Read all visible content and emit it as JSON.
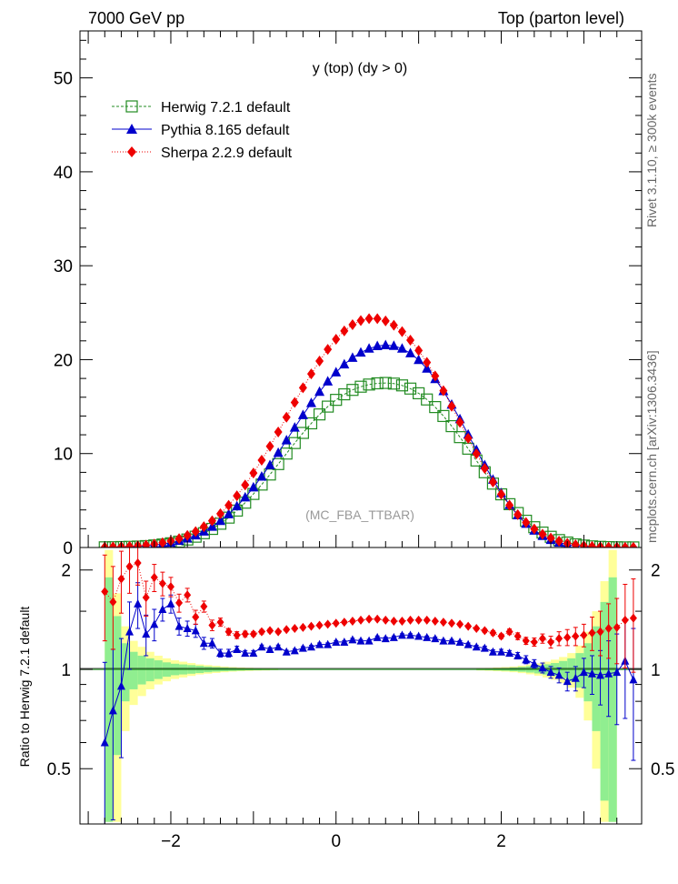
{
  "header": {
    "left": "7000 GeV pp",
    "right": "Top (parton level)"
  },
  "side_labels": {
    "rivet": "Rivet 3.1.10, ≥ 300k events",
    "mcplots": "mcplots.cern.ch [arXiv:1306.3436]"
  },
  "watermark": "(MC_FBA_TTBAR)",
  "colors": {
    "herwig": "#228B22",
    "pythia": "#0000CC",
    "sherpa": "#EE0000",
    "band_inner": "#90EE90",
    "band_outer": "#FFFF99"
  },
  "chart_data": [
    {
      "type": "line",
      "title": "y (top) (dy > 0)",
      "xlabel": "",
      "ylabel": "",
      "xlim": [
        -3.1,
        3.7
      ],
      "ylim": [
        0,
        55
      ],
      "yticks": [
        0,
        10,
        20,
        30,
        40,
        50
      ],
      "legend_position": "top-left",
      "x": [
        -2.8,
        -2.7,
        -2.6,
        -2.5,
        -2.4,
        -2.3,
        -2.2,
        -2.1,
        -2.0,
        -1.9,
        -1.8,
        -1.7,
        -1.6,
        -1.5,
        -1.4,
        -1.3,
        -1.2,
        -1.1,
        -1.0,
        -0.9,
        -0.8,
        -0.7,
        -0.6,
        -0.5,
        -0.4,
        -0.3,
        -0.2,
        -0.1,
        0.0,
        0.1,
        0.2,
        0.3,
        0.4,
        0.5,
        0.6,
        0.7,
        0.8,
        0.9,
        1.0,
        1.1,
        1.2,
        1.3,
        1.4,
        1.5,
        1.6,
        1.7,
        1.8,
        1.9,
        2.0,
        2.1,
        2.2,
        2.3,
        2.4,
        2.5,
        2.6,
        2.7,
        2.8,
        2.9,
        3.0,
        3.1,
        3.2,
        3.3,
        3.4,
        3.5,
        3.6
      ],
      "series": [
        {
          "name": "Herwig 7.2.1 default",
          "marker": "open-square",
          "values": [
            0.02,
            0.03,
            0.05,
            0.07,
            0.1,
            0.15,
            0.22,
            0.32,
            0.45,
            0.62,
            0.85,
            1.15,
            1.52,
            1.98,
            2.53,
            3.18,
            3.93,
            4.77,
            5.7,
            6.7,
            7.77,
            8.88,
            10.0,
            11.12,
            12.2,
            13.22,
            14.17,
            15.0,
            15.72,
            16.31,
            16.78,
            17.12,
            17.35,
            17.48,
            17.52,
            17.45,
            17.26,
            16.92,
            16.42,
            15.76,
            14.95,
            14.0,
            12.92,
            11.75,
            10.52,
            9.26,
            8.01,
            6.8,
            5.66,
            4.61,
            3.67,
            2.85,
            2.16,
            1.59,
            1.14,
            0.79,
            0.53,
            0.34,
            0.21,
            0.12,
            0.07,
            0.04,
            0.02,
            0.01,
            0.01
          ]
        },
        {
          "name": "Pythia 8.165 default",
          "marker": "filled-triangle",
          "values": [
            0.03,
            0.04,
            0.06,
            0.08,
            0.12,
            0.18,
            0.26,
            0.37,
            0.51,
            0.71,
            0.97,
            1.3,
            1.71,
            2.22,
            2.83,
            3.55,
            4.39,
            5.34,
            6.4,
            7.55,
            8.78,
            10.08,
            11.42,
            12.77,
            14.1,
            15.38,
            16.58,
            17.68,
            18.65,
            19.5,
            20.2,
            20.76,
            21.18,
            21.45,
            21.55,
            21.47,
            21.18,
            20.68,
            19.97,
            19.05,
            17.94,
            16.66,
            15.22,
            13.66,
            12.03,
            10.38,
            8.76,
            7.22,
            5.8,
            4.53,
            3.44,
            2.53,
            1.8,
            1.23,
            0.81,
            0.52,
            0.32,
            0.19,
            0.11,
            0.06,
            0.04,
            0.02,
            0.01,
            0.01,
            0.0
          ]
        },
        {
          "name": "Sherpa 2.2.9 default",
          "marker": "filled-diamond",
          "values": [
            0.04,
            0.06,
            0.09,
            0.12,
            0.18,
            0.25,
            0.36,
            0.51,
            0.7,
            0.95,
            1.28,
            1.7,
            2.22,
            2.85,
            3.6,
            4.49,
            5.51,
            6.66,
            7.93,
            9.3,
            10.77,
            12.3,
            13.87,
            15.45,
            17.0,
            18.48,
            19.85,
            21.1,
            22.18,
            23.06,
            23.72,
            24.16,
            24.37,
            24.36,
            24.12,
            23.66,
            22.98,
            22.08,
            20.98,
            19.7,
            18.26,
            16.69,
            15.03,
            13.33,
            11.63,
            9.98,
            8.42,
            6.97,
            5.66,
            4.5,
            3.5,
            2.66,
            1.97,
            1.42,
            1.0,
            0.68,
            0.45,
            0.29,
            0.18,
            0.11,
            0.07,
            0.04,
            0.02,
            0.01,
            0.01
          ]
        }
      ]
    },
    {
      "type": "line",
      "title": "",
      "xlabel": "",
      "ylabel": "Ratio to Herwig 7.2.1 default",
      "xlim": [
        -3.1,
        3.7
      ],
      "ylim": [
        0.34,
        2.34
      ],
      "yticks": [
        0.5,
        1,
        2
      ],
      "xticks": [
        -2,
        0,
        2
      ],
      "ref_line": 1,
      "band": {
        "x_edges": [
          -2.75,
          -2.65,
          -2.55,
          -2.45,
          -2.35,
          -2.25,
          -2.15,
          -2.05,
          -1.95,
          -1.85,
          -1.75,
          -1.65,
          -1.55,
          -1.45,
          -1.35,
          -1.25,
          -1.15,
          -1.05,
          -0.95,
          -0.85,
          -0.75,
          1.75,
          1.85,
          1.95,
          2.05,
          2.15,
          2.25,
          2.35,
          2.45,
          2.55,
          2.65,
          2.75,
          2.85,
          2.95,
          3.05,
          3.15,
          3.25,
          3.35,
          3.45
        ],
        "inner_half": [
          0.9,
          0.45,
          0.2,
          0.13,
          0.1,
          0.08,
          0.065,
          0.05,
          0.04,
          0.035,
          0.03,
          0.025,
          0.02,
          0.016,
          0.013,
          0.011,
          0.009,
          0.007,
          0.006,
          0.005,
          0.004,
          0.005,
          0.006,
          0.008,
          0.01,
          0.013,
          0.017,
          0.022,
          0.028,
          0.036,
          0.045,
          0.06,
          0.08,
          0.12,
          0.2,
          0.35,
          0.6,
          0.9
        ],
        "outer_half": [
          1.3,
          0.7,
          0.35,
          0.22,
          0.17,
          0.13,
          0.1,
          0.08,
          0.065,
          0.055,
          0.045,
          0.035,
          0.03,
          0.025,
          0.02,
          0.016,
          0.013,
          0.011,
          0.009,
          0.008,
          0.006,
          0.008,
          0.01,
          0.013,
          0.016,
          0.02,
          0.026,
          0.034,
          0.043,
          0.055,
          0.07,
          0.09,
          0.12,
          0.18,
          0.3,
          0.5,
          0.85,
          1.3
        ]
      },
      "series": [
        {
          "name": "Pythia 8.165 default",
          "values": [
            0.6,
            0.75,
            0.89,
            1.3,
            1.58,
            1.28,
            1.37,
            1.52,
            1.58,
            1.35,
            1.33,
            1.31,
            1.2,
            1.2,
            1.12,
            1.12,
            1.15,
            1.12,
            1.12,
            1.17,
            1.15,
            1.17,
            1.13,
            1.14,
            1.16,
            1.17,
            1.19,
            1.19,
            1.21,
            1.21,
            1.23,
            1.22,
            1.22,
            1.25,
            1.24,
            1.25,
            1.27,
            1.27,
            1.26,
            1.25,
            1.24,
            1.22,
            1.22,
            1.21,
            1.19,
            1.17,
            1.16,
            1.13,
            1.13,
            1.12,
            1.1,
            1.07,
            1.04,
            1.01,
            0.98,
            0.96,
            0.92,
            0.94,
            0.98,
            0.97,
            0.96,
            0.97,
            0.98,
            1.06,
            0.93
          ],
          "err": [
            0.45,
            0.4,
            0.35,
            0.3,
            0.25,
            0.18,
            0.15,
            0.12,
            0.1,
            0.08,
            0.07,
            0.06,
            0.05,
            0.04,
            0.03,
            0.03,
            0.025,
            0.02,
            0.02,
            0.015,
            0.015,
            0.015,
            0.012,
            0.012,
            0.012,
            0.012,
            0.012,
            0.012,
            0.012,
            0.012,
            0.012,
            0.012,
            0.012,
            0.012,
            0.012,
            0.012,
            0.012,
            0.012,
            0.012,
            0.012,
            0.012,
            0.012,
            0.012,
            0.012,
            0.012,
            0.012,
            0.015,
            0.015,
            0.02,
            0.02,
            0.025,
            0.03,
            0.03,
            0.035,
            0.04,
            0.05,
            0.06,
            0.08,
            0.1,
            0.13,
            0.18,
            0.25,
            0.3,
            0.35,
            0.4
          ]
        },
        {
          "name": "Sherpa 2.2.9 default",
          "values": [
            1.72,
            1.6,
            1.88,
            2.05,
            2.1,
            1.65,
            1.9,
            1.82,
            1.78,
            1.59,
            1.68,
            1.44,
            1.55,
            1.36,
            1.39,
            1.3,
            1.27,
            1.28,
            1.28,
            1.3,
            1.31,
            1.3,
            1.32,
            1.33,
            1.34,
            1.35,
            1.36,
            1.37,
            1.38,
            1.39,
            1.4,
            1.41,
            1.42,
            1.42,
            1.41,
            1.4,
            1.4,
            1.41,
            1.41,
            1.41,
            1.4,
            1.39,
            1.38,
            1.37,
            1.35,
            1.33,
            1.31,
            1.29,
            1.26,
            1.3,
            1.26,
            1.22,
            1.21,
            1.24,
            1.21,
            1.24,
            1.25,
            1.26,
            1.27,
            1.29,
            1.3,
            1.33,
            1.34,
            1.41,
            1.43
          ],
          "err": [
            0.5,
            0.45,
            0.4,
            0.35,
            0.3,
            0.2,
            0.18,
            0.15,
            0.12,
            0.1,
            0.08,
            0.07,
            0.06,
            0.05,
            0.04,
            0.03,
            0.03,
            0.025,
            0.02,
            0.02,
            0.018,
            0.015,
            0.015,
            0.015,
            0.015,
            0.015,
            0.015,
            0.015,
            0.015,
            0.015,
            0.015,
            0.015,
            0.015,
            0.015,
            0.015,
            0.015,
            0.015,
            0.015,
            0.015,
            0.015,
            0.015,
            0.015,
            0.015,
            0.015,
            0.015,
            0.015,
            0.018,
            0.02,
            0.02,
            0.025,
            0.03,
            0.03,
            0.035,
            0.04,
            0.05,
            0.06,
            0.07,
            0.08,
            0.1,
            0.15,
            0.2,
            0.25,
            0.3,
            0.4,
            0.45
          ]
        }
      ]
    }
  ]
}
